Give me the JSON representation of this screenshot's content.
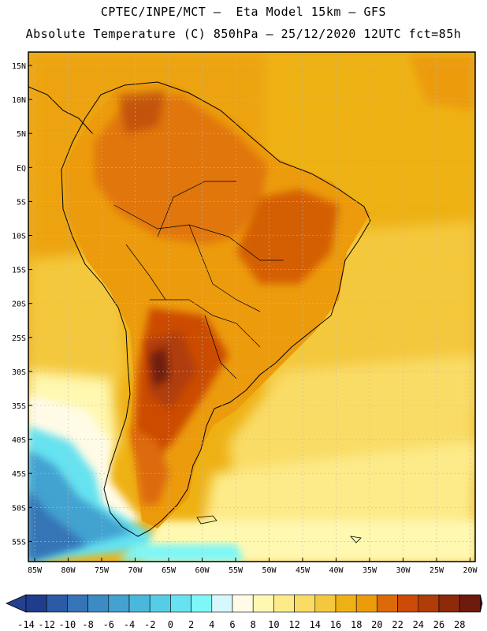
{
  "header": {
    "line1": "CPTEC/INPE/MCT –  Eta Model 15km – GFS",
    "line2": "Absolute Temperature (C) 850hPa – 25/12/2020 12UTC fct=85h"
  },
  "map": {
    "lat_labels": [
      "15N",
      "10N",
      "5N",
      "EQ",
      "5S",
      "10S",
      "15S",
      "20S",
      "25S",
      "30S",
      "35S",
      "40S",
      "45S",
      "50S",
      "55S"
    ],
    "lon_labels": [
      "85W",
      "80W",
      "75W",
      "70W",
      "65W",
      "60W",
      "55W",
      "50W",
      "45W",
      "40W",
      "35W",
      "30W",
      "25W",
      "20W"
    ]
  },
  "colorbar": {
    "labels": [
      "-14",
      "-12",
      "-10",
      "-8",
      "-6",
      "-4",
      "-2",
      "0",
      "2",
      "4",
      "6",
      "8",
      "10",
      "12",
      "14",
      "16",
      "18",
      "20",
      "22",
      "24",
      "26",
      "28"
    ],
    "colors": [
      "#1f3d8c",
      "#2b5aa6",
      "#3574b6",
      "#3b8bc4",
      "#43a2d0",
      "#4ab8dc",
      "#55cde6",
      "#66e2f0",
      "#7ef7f7",
      "#d6f7fb",
      "#fffbe6",
      "#fff8b0",
      "#fdeb8a",
      "#f9dc66",
      "#f4c83e",
      "#eeb114",
      "#ec9b0c",
      "#dd6a08",
      "#cc4b06",
      "#b03c08",
      "#8c2a0a",
      "#6e1a0c"
    ],
    "under_color": "#24408e",
    "over_color": "#7a0a2a"
  }
}
